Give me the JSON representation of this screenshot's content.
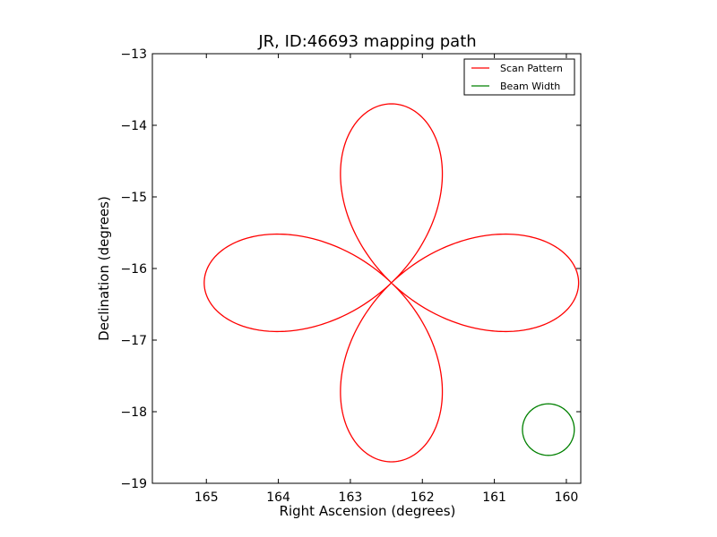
{
  "chart_data": {
    "type": "line",
    "title": "JR, ID:46693 mapping path",
    "xlabel": "Right Ascension (degrees)",
    "ylabel": "Declination (degrees)",
    "xlim": [
      165.75,
      159.8
    ],
    "ylim": [
      -19,
      -13
    ],
    "x_inverted": true,
    "xticks": [
      "165",
      "164",
      "163",
      "162",
      "161",
      "160"
    ],
    "yticks": [
      "−13",
      "−14",
      "−15",
      "−16",
      "−17",
      "−18",
      "−19"
    ],
    "grid": false,
    "legend_position": "top-right",
    "series": [
      {
        "name": "Scan Pattern",
        "color": "#ff0000",
        "shape": "four-lobed rose",
        "center": [
          162.43,
          -16.2
        ],
        "x_radius": 2.6,
        "y_radius": 2.5
      },
      {
        "name": "Beam Width",
        "color": "#008000",
        "shape": "circle",
        "center": [
          160.25,
          -18.25
        ],
        "radius_x": 0.36,
        "radius_y": 0.36
      }
    ]
  }
}
